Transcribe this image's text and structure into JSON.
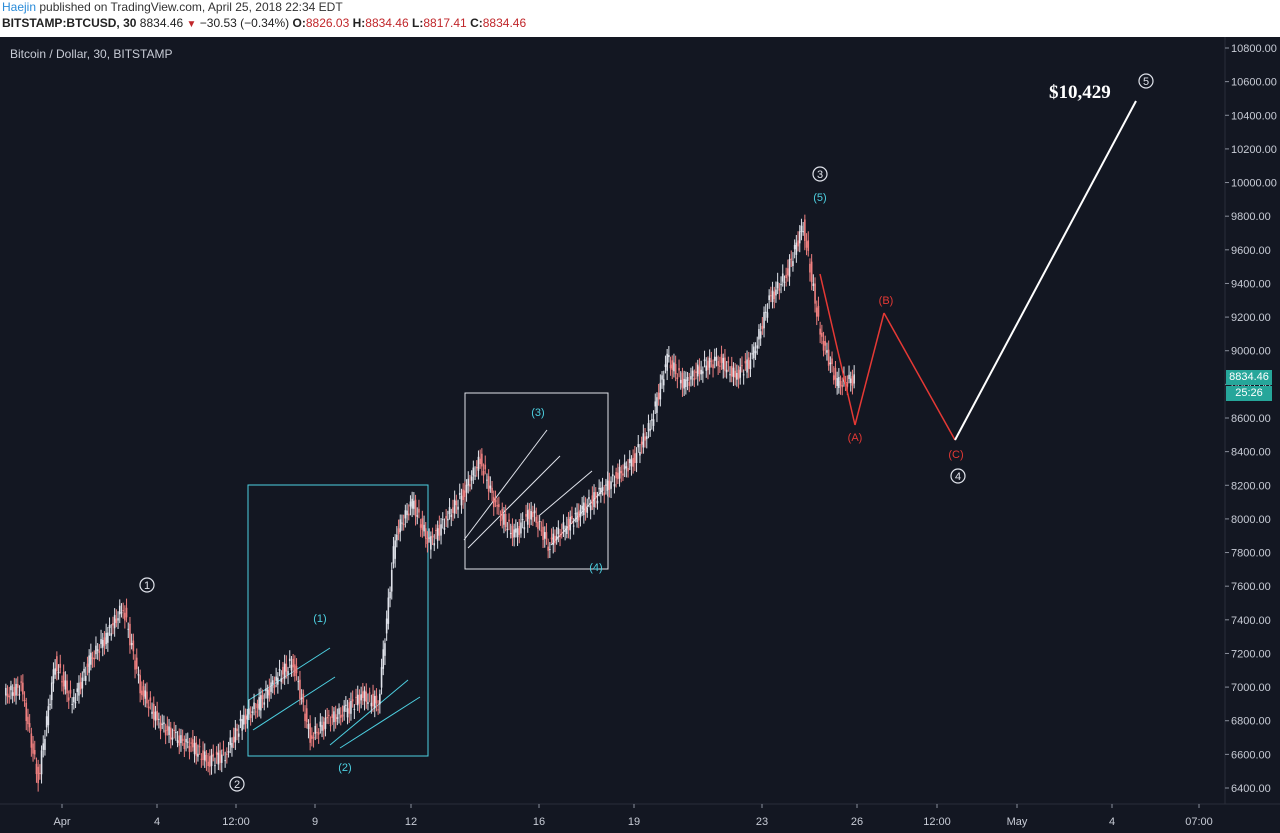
{
  "header": {
    "author": "Haejin",
    "published_text": " published on TradingView.com, April 25, 2018 22:34 EDT",
    "symbol": "BITSTAMP:BTCUSD, 30",
    "last": "8834.46",
    "change": "−30.53 (−0.34%)",
    "open_label": "O:",
    "open": "8826.03",
    "high_label": "H:",
    "high": "8834.46",
    "low_label": "L:",
    "low": "8817.41",
    "close_label": "C:",
    "close": "8834.46"
  },
  "chart": {
    "title": "Bitcoin / Dollar, 30, BITSTAMP",
    "target_label": "$10,429",
    "price_tag": "8834.46",
    "countdown": "25:26",
    "colors": {
      "background": "#131722",
      "up_candle": "#e0e3eb",
      "down_candle": "#f08080",
      "wave_cyan": "#4dd0e1",
      "wave_red": "#e53935",
      "label_white": "#ffffff",
      "price_tag": "#26a69a"
    }
  },
  "chart_data": {
    "type": "line",
    "title": "Bitcoin / Dollar, 30, BITSTAMP",
    "ylim": [
      6300,
      10900
    ],
    "y_ticks": [
      "6400.00",
      "6600.00",
      "6800.00",
      "7000.00",
      "7200.00",
      "7400.00",
      "7600.00",
      "7800.00",
      "8000.00",
      "8200.00",
      "8400.00",
      "8600.00",
      "8800.00",
      "9000.00",
      "9200.00",
      "9400.00",
      "9600.00",
      "9800.00",
      "10000.00",
      "10200.00",
      "10400.00",
      "10600.00",
      "10800.00"
    ],
    "x_ticks": [
      "Apr",
      "4",
      "12:00",
      "9",
      "12",
      "16",
      "19",
      "23",
      "26",
      "12:00",
      "May",
      "4",
      "07:00"
    ],
    "series": [
      {
        "x": [
          "Apr 1",
          "Apr 1",
          "Apr 2",
          "Apr 2",
          "Apr 3",
          "Apr 3",
          "Apr 4",
          "Apr 4",
          "Apr 5",
          "Apr 5",
          "Apr 6",
          "Apr 6",
          "Apr 7",
          "Apr 7",
          "Apr 8",
          "Apr 8",
          "Apr 9",
          "Apr 9",
          "Apr 10",
          "Apr 10",
          "Apr 11",
          "Apr 11",
          "Apr 12",
          "Apr 12",
          "Apr 13",
          "Apr 13",
          "Apr 14",
          "Apr 14",
          "Apr 15",
          "Apr 15",
          "Apr 16",
          "Apr 16",
          "Apr 17",
          "Apr 17",
          "Apr 18",
          "Apr 18",
          "Apr 19",
          "Apr 19",
          "Apr 20",
          "Apr 20",
          "Apr 21",
          "Apr 21",
          "Apr 22",
          "Apr 22",
          "Apr 23",
          "Apr 23",
          "Apr 24",
          "Apr 24",
          "Apr 25",
          "Apr 25",
          "Apr 26"
        ],
        "values": [
          6950,
          7000,
          6450,
          7150,
          6900,
          7150,
          7300,
          7480,
          7000,
          6800,
          6700,
          6650,
          6560,
          6600,
          6800,
          6900,
          7050,
          7150,
          6700,
          6800,
          6850,
          6950,
          6900,
          7900,
          8100,
          7850,
          8000,
          8150,
          8350,
          8050,
          7900,
          8050,
          7850,
          7950,
          8050,
          8150,
          8250,
          8350,
          8550,
          8950,
          8800,
          8900,
          8950,
          8850,
          8950,
          9300,
          9450,
          9750,
          9100,
          8800,
          8834.46
        ]
      }
    ],
    "wave_labels_primary": [
      {
        "label": "1",
        "x": "Apr 3",
        "y": 7590
      },
      {
        "label": "2",
        "x": "Apr 6 12:00",
        "y": 6420
      },
      {
        "label": "3",
        "x": "Apr 24",
        "y": 10040
      },
      {
        "label": "4",
        "x": "Apr 26 12:00",
        "y": 8250
      },
      {
        "label": "5",
        "x": "Apr 30",
        "y": 10630
      }
    ],
    "wave_labels_minor": [
      {
        "label": "(1)",
        "x": "Apr 9",
        "y": 7390
      },
      {
        "label": "(2)",
        "x": "Apr 10",
        "y": 6720
      },
      {
        "label": "(3)",
        "x": "Apr 15",
        "y": 8630
      },
      {
        "label": "(4)",
        "x": "Apr 17 12:00",
        "y": 7690
      },
      {
        "label": "(5)",
        "x": "Apr 24",
        "y": 9890
      }
    ],
    "wave_labels_correction": [
      {
        "label": "(A)",
        "x": "Apr 25",
        "y": 8480
      },
      {
        "label": "(B)",
        "x": "Apr 25 12:00",
        "y": 9300
      },
      {
        "label": "(C)",
        "x": "Apr 26 12:00",
        "y": 8380
      }
    ],
    "projection": [
      {
        "x": "Apr 24",
        "y": 9450
      },
      {
        "x": "Apr 25",
        "y": 8560
      },
      {
        "x": "Apr 25 12:00",
        "y": 9220
      },
      {
        "x": "Apr 26 12:00",
        "y": 8450
      },
      {
        "x": "Apr 30",
        "y": 10470
      }
    ]
  }
}
